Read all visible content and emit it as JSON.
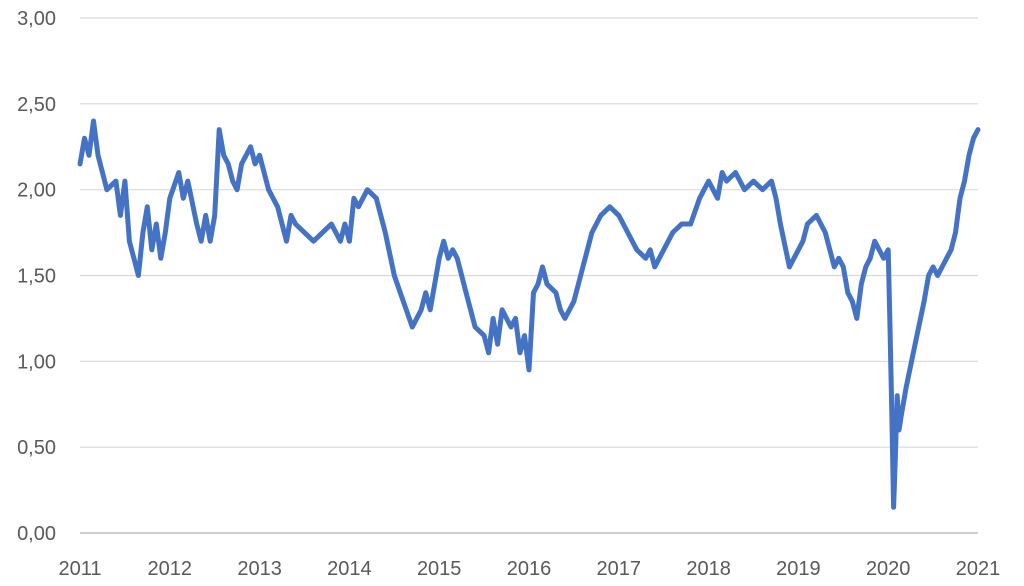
{
  "chart_data": {
    "type": "line",
    "title": "",
    "xlabel": "",
    "ylabel": "",
    "xlim": [
      2011,
      2021
    ],
    "ylim": [
      0,
      3
    ],
    "x_ticks": [
      "2011",
      "2012",
      "2013",
      "2014",
      "2015",
      "2016",
      "2017",
      "2018",
      "2019",
      "2020",
      "2021"
    ],
    "y_ticks": [
      "0,00",
      "0,50",
      "1,00",
      "1,50",
      "2,00",
      "2,50",
      "3,00"
    ],
    "grid": true,
    "legend": "none",
    "color": "#4472c4",
    "series": [
      {
        "x": [
          2011.0,
          2011.05,
          2011.1,
          2011.15,
          2011.2,
          2011.3,
          2011.4,
          2011.45,
          2011.5,
          2011.55,
          2011.6,
          2011.65,
          2011.7,
          2011.75,
          2011.8,
          2011.85,
          2011.9,
          2011.95,
          2012.0,
          2012.1,
          2012.15,
          2012.2,
          2012.3,
          2012.35,
          2012.4,
          2012.45,
          2012.5,
          2012.55,
          2012.6,
          2012.65,
          2012.7,
          2012.75,
          2012.8,
          2012.9,
          2012.95,
          2013.0,
          2013.1,
          2013.2,
          2013.3,
          2013.35,
          2013.4,
          2013.5,
          2013.6,
          2013.7,
          2013.8,
          2013.9,
          2013.95,
          2014.0,
          2014.05,
          2014.1,
          2014.15,
          2014.2,
          2014.3,
          2014.4,
          2014.5,
          2014.6,
          2014.7,
          2014.8,
          2014.85,
          2014.9,
          2014.95,
          2015.0,
          2015.05,
          2015.1,
          2015.15,
          2015.2,
          2015.3,
          2015.4,
          2015.5,
          2015.55,
          2015.6,
          2015.65,
          2015.7,
          2015.8,
          2015.85,
          2015.9,
          2015.95,
          2016.0,
          2016.05,
          2016.1,
          2016.15,
          2016.2,
          2016.3,
          2016.35,
          2016.4,
          2016.5,
          2016.6,
          2016.7,
          2016.8,
          2016.9,
          2017.0,
          2017.1,
          2017.2,
          2017.3,
          2017.35,
          2017.4,
          2017.5,
          2017.6,
          2017.7,
          2017.8,
          2017.9,
          2018.0,
          2018.05,
          2018.1,
          2018.15,
          2018.2,
          2018.3,
          2018.4,
          2018.5,
          2018.6,
          2018.7,
          2018.75,
          2018.8,
          2018.9,
          2019.0,
          2019.05,
          2019.1,
          2019.2,
          2019.3,
          2019.4,
          2019.45,
          2019.5,
          2019.55,
          2019.6,
          2019.65,
          2019.7,
          2019.75,
          2019.8,
          2019.85,
          2019.9,
          2019.95,
          2020.0,
          2020.02,
          2020.04,
          2020.06,
          2020.08,
          2020.1,
          2020.12,
          2020.15,
          2020.2,
          2020.3,
          2020.4,
          2020.45,
          2020.5,
          2020.55,
          2020.6,
          2020.65,
          2020.7,
          2020.75,
          2020.8,
          2020.85,
          2020.9,
          2020.95,
          2021.0
        ],
        "values": [
          2.15,
          2.3,
          2.2,
          2.4,
          2.2,
          2.0,
          2.05,
          1.85,
          2.05,
          1.7,
          1.6,
          1.5,
          1.75,
          1.9,
          1.65,
          1.8,
          1.6,
          1.75,
          1.95,
          2.1,
          1.95,
          2.05,
          1.8,
          1.7,
          1.85,
          1.7,
          1.85,
          2.35,
          2.2,
          2.15,
          2.05,
          2.0,
          2.15,
          2.25,
          2.15,
          2.2,
          2.0,
          1.9,
          1.7,
          1.85,
          1.8,
          1.75,
          1.7,
          1.75,
          1.8,
          1.7,
          1.8,
          1.7,
          1.95,
          1.9,
          1.95,
          2.0,
          1.95,
          1.75,
          1.5,
          1.35,
          1.2,
          1.3,
          1.4,
          1.3,
          1.45,
          1.6,
          1.7,
          1.6,
          1.65,
          1.6,
          1.4,
          1.2,
          1.15,
          1.05,
          1.25,
          1.1,
          1.3,
          1.2,
          1.25,
          1.05,
          1.15,
          0.95,
          1.4,
          1.45,
          1.55,
          1.45,
          1.4,
          1.3,
          1.25,
          1.35,
          1.55,
          1.75,
          1.85,
          1.9,
          1.85,
          1.75,
          1.65,
          1.6,
          1.65,
          1.55,
          1.65,
          1.75,
          1.8,
          1.8,
          1.95,
          2.05,
          2.0,
          1.95,
          2.1,
          2.05,
          2.1,
          2.0,
          2.05,
          2.0,
          2.05,
          1.95,
          1.8,
          1.55,
          1.65,
          1.7,
          1.8,
          1.85,
          1.75,
          1.55,
          1.6,
          1.55,
          1.4,
          1.35,
          1.25,
          1.45,
          1.55,
          1.6,
          1.7,
          1.65,
          1.6,
          1.65,
          1.2,
          0.7,
          0.15,
          0.45,
          0.8,
          0.6,
          0.7,
          0.85,
          1.1,
          1.35,
          1.5,
          1.55,
          1.5,
          1.55,
          1.6,
          1.65,
          1.75,
          1.95,
          2.05,
          2.2,
          2.3,
          2.35
        ]
      }
    ]
  }
}
